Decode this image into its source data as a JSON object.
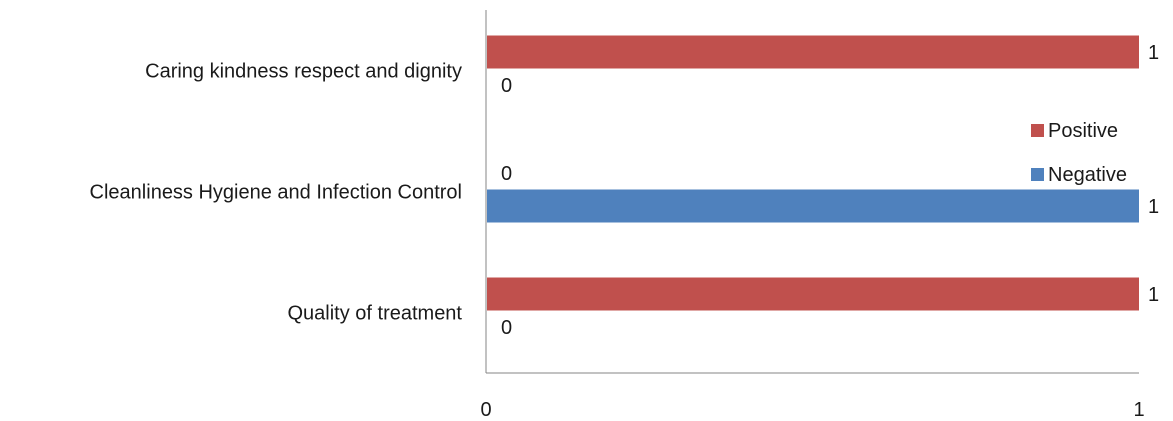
{
  "chart_data": {
    "type": "bar",
    "orientation": "horizontal",
    "categories": [
      "Caring kindness respect and dignity",
      "Cleanliness Hygiene and Infection Control",
      "Quality of treatment"
    ],
    "series": [
      {
        "name": "Positive",
        "color": "#C0504D",
        "values": [
          1,
          0,
          1
        ]
      },
      {
        "name": "Negative",
        "color": "#4F81BD",
        "values": [
          0,
          1,
          0
        ]
      }
    ],
    "xlim": [
      0,
      1
    ],
    "x_ticks": [
      "0",
      "1"
    ],
    "grid": false,
    "legend": {
      "position": "right",
      "entries": [
        "Positive",
        "Negative"
      ]
    }
  }
}
